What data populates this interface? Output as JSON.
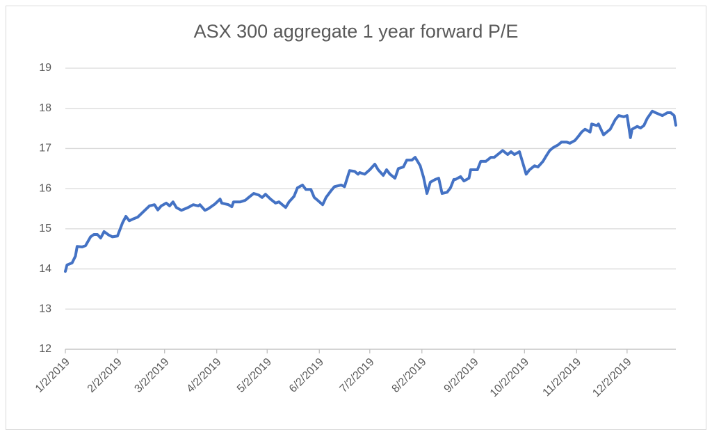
{
  "chart_data": {
    "type": "line",
    "title": "ASX 300 aggregate 1 year forward P/E",
    "x": [
      "1/2/2019",
      "1/3/2019",
      "1/6/2019",
      "1/8/2019",
      "1/9/2019",
      "1/12/2019",
      "1/14/2019",
      "1/17/2019",
      "1/19/2019",
      "1/21/2019",
      "1/23/2019",
      "1/25/2019",
      "1/28/2019",
      "1/30/2019",
      "2/2/2019",
      "2/5/2019",
      "2/7/2019",
      "2/9/2019",
      "2/11/2019",
      "2/14/2019",
      "2/17/2019",
      "2/21/2019",
      "2/24/2019",
      "2/26/2019",
      "2/28/2019",
      "3/3/2019",
      "3/5/2019",
      "3/7/2019",
      "3/9/2019",
      "3/12/2019",
      "3/16/2019",
      "3/19/2019",
      "3/22/2019",
      "3/23/2019",
      "3/26/2019",
      "3/28/2019",
      "4/1/2019",
      "4/4/2019",
      "4/5/2019",
      "4/9/2019",
      "4/11/2019",
      "4/12/2019",
      "4/16/2019",
      "4/19/2019",
      "4/21/2019",
      "4/24/2019",
      "4/27/2019",
      "4/29/2019",
      "5/1/2019",
      "5/4/2019",
      "5/7/2019",
      "5/9/2019",
      "5/13/2019",
      "5/15/2019",
      "5/18/2019",
      "5/20/2019",
      "5/23/2019",
      "5/25/2019",
      "5/28/2019",
      "5/30/2019",
      "6/1/2019",
      "6/4/2019",
      "6/6/2019",
      "6/9/2019",
      "6/11/2019",
      "6/15/2019",
      "6/17/2019",
      "6/20/2019",
      "6/23/2019",
      "6/25/2019",
      "6/26/2019",
      "6/29/2019",
      "7/2/2019",
      "7/5/2019",
      "7/7/2019",
      "7/10/2019",
      "7/12/2019",
      "7/14/2019",
      "7/17/2019",
      "7/19/2019",
      "7/22/2019",
      "7/24/2019",
      "7/27/2019",
      "7/29/2019",
      "8/1/2019",
      "8/3/2019",
      "8/5/2019",
      "8/7/2019",
      "8/10/2019",
      "8/12/2019",
      "8/14/2019",
      "8/17/2019",
      "8/19/2019",
      "8/21/2019",
      "8/22/2019",
      "8/25/2019",
      "8/27/2019",
      "8/30/2019",
      "8/31/2019",
      "9/4/2019",
      "9/6/2019",
      "9/9/2019",
      "9/12/2019",
      "9/14/2019",
      "9/17/2019",
      "9/19/2019",
      "9/22/2019",
      "9/24/2019",
      "9/26/2019",
      "9/29/2019",
      "10/1/2019",
      "10/3/2019",
      "10/5/2019",
      "10/8/2019",
      "10/10/2019",
      "10/13/2019",
      "10/15/2019",
      "10/17/2019",
      "10/19/2019",
      "10/22/2019",
      "10/24/2019",
      "10/27/2019",
      "10/29/2019",
      "11/1/2019",
      "11/3/2019",
      "11/5/2019",
      "11/7/2019",
      "11/10/2019",
      "11/11/2019",
      "11/14/2019",
      "11/15/2019",
      "11/18/2019",
      "11/20/2019",
      "11/22/2019",
      "11/25/2019",
      "11/27/2019",
      "11/30/2019",
      "12/2/2019",
      "12/4/2019",
      "12/5/2019",
      "12/8/2019",
      "12/10/2019",
      "12/12/2019",
      "12/14/2019",
      "12/17/2019",
      "12/19/2019",
      "12/23/2019",
      "12/26/2019",
      "12/28/2019",
      "12/30/2019",
      "12/31/2019"
    ],
    "values": [
      13.94,
      14.1,
      14.15,
      14.32,
      14.56,
      14.55,
      14.58,
      14.8,
      14.86,
      14.86,
      14.77,
      14.93,
      14.84,
      14.8,
      14.82,
      15.15,
      15.31,
      15.2,
      15.24,
      15.29,
      15.41,
      15.57,
      15.6,
      15.47,
      15.57,
      15.64,
      15.57,
      15.67,
      15.53,
      15.46,
      15.53,
      15.6,
      15.57,
      15.6,
      15.46,
      15.5,
      15.62,
      15.74,
      15.64,
      15.6,
      15.55,
      15.67,
      15.67,
      15.71,
      15.78,
      15.88,
      15.84,
      15.78,
      15.86,
      15.74,
      15.64,
      15.67,
      15.53,
      15.67,
      15.81,
      16.02,
      16.09,
      15.98,
      15.98,
      15.78,
      15.71,
      15.6,
      15.78,
      15.95,
      16.05,
      16.09,
      16.05,
      16.45,
      16.43,
      16.36,
      16.4,
      16.36,
      16.47,
      16.61,
      16.47,
      16.33,
      16.47,
      16.36,
      16.26,
      16.5,
      16.54,
      16.71,
      16.71,
      16.78,
      16.57,
      16.28,
      15.88,
      16.16,
      16.23,
      16.26,
      15.88,
      15.91,
      16.02,
      16.23,
      16.23,
      16.3,
      16.19,
      16.26,
      16.47,
      16.47,
      16.68,
      16.68,
      16.78,
      16.78,
      16.88,
      16.95,
      16.85,
      16.92,
      16.85,
      16.92,
      16.64,
      16.36,
      16.47,
      16.57,
      16.54,
      16.68,
      16.82,
      16.95,
      17.02,
      17.09,
      17.16,
      17.16,
      17.13,
      17.2,
      17.3,
      17.41,
      17.48,
      17.41,
      17.61,
      17.57,
      17.61,
      17.34,
      17.41,
      17.48,
      17.72,
      17.82,
      17.79,
      17.82,
      17.27,
      17.48,
      17.55,
      17.51,
      17.57,
      17.75,
      17.93,
      17.89,
      17.82,
      17.89,
      17.89,
      17.82,
      17.58
    ],
    "color": "#4472c4",
    "xlim": [
      "1/2/2019",
      "12/31/2019"
    ],
    "xticks": [
      "1/2/2019",
      "2/2/2019",
      "3/2/2019",
      "4/2/2019",
      "5/2/2019",
      "6/2/2019",
      "7/2/2019",
      "8/2/2019",
      "9/2/2019",
      "10/2/2019",
      "11/2/2019",
      "12/2/2019"
    ],
    "ylim": [
      12,
      19
    ],
    "yticks": [
      12,
      13,
      14,
      15,
      16,
      17,
      18,
      19
    ],
    "grid": true
  }
}
